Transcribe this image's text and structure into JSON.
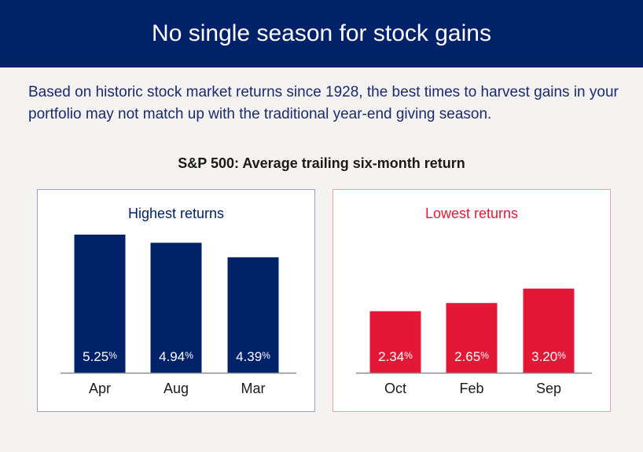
{
  "banner": {
    "title": "No single season for stock gains"
  },
  "intro": {
    "text": "Based on historic stock market returns since 1928, the best times to harvest gains in your portfolio may not match up with the traditional year-end giving season."
  },
  "colors": {
    "navy": "#012169",
    "red": "#e31837"
  },
  "chart_data": {
    "title": "S&P 500: Average trailing six-month return",
    "type": "bar",
    "unit": "%",
    "panels": [
      {
        "title": "Highest returns",
        "color": "#012169",
        "categories": [
          "Apr",
          "Aug",
          "Mar"
        ],
        "values": [
          5.25,
          4.94,
          4.39
        ],
        "labels": [
          "5.25",
          "4.94",
          "4.39"
        ]
      },
      {
        "title": "Lowest returns",
        "color": "#e31837",
        "categories": [
          "Oct",
          "Feb",
          "Sep"
        ],
        "values": [
          2.34,
          2.65,
          3.2
        ],
        "labels": [
          "2.34",
          "2.65",
          "3.20"
        ]
      }
    ]
  }
}
